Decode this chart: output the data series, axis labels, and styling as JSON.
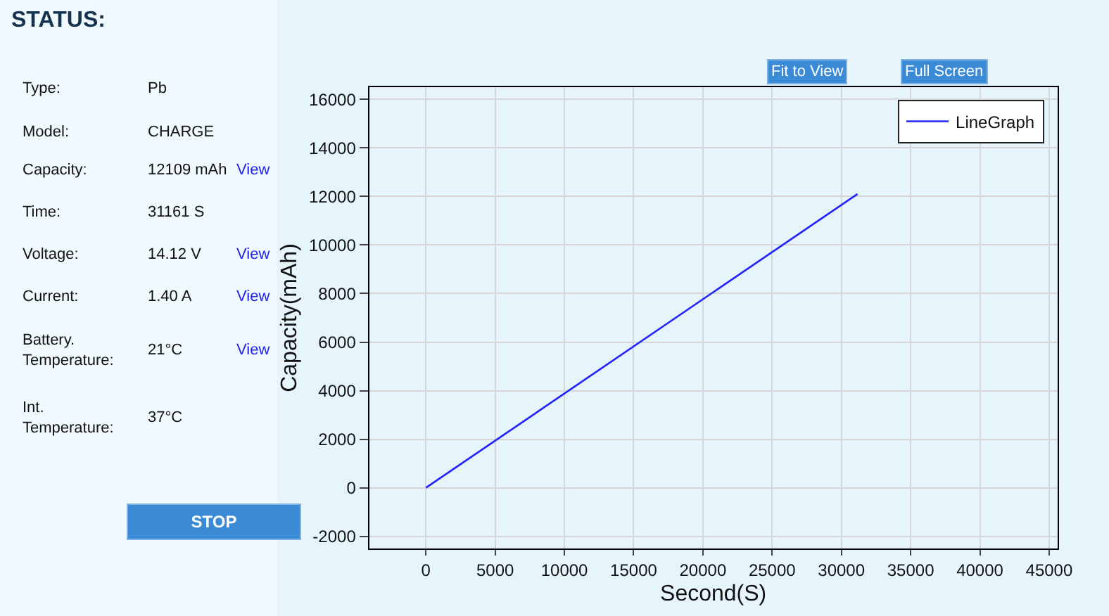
{
  "chart_data": [
    {
      "type": "other",
      "title": "STATUS:",
      "annotations": [
        "Type:",
        "Pb",
        "Model:",
        "CHARGE",
        "Capacity:",
        "12109 mAh",
        "View",
        "Time:",
        "31161 S",
        "Voltage:",
        "14.12 V",
        "View",
        "Current:",
        "1.40 A",
        "View",
        "Battery.\nTemperature:",
        "21°C",
        "View",
        "Int.\nTemperature:",
        "37°C",
        "STOP"
      ]
    },
    {
      "type": "line",
      "xlabel": "Second(S)",
      "ylabel": "Capacity(mAh)",
      "annotations": [
        "Fit to View",
        "Full Screen"
      ],
      "x": [
        0,
        31161
      ],
      "series": [
        {
          "name": "LineGraph",
          "color": "#2323ff",
          "values": [
            0,
            12100
          ]
        }
      ],
      "xlim": [
        -4100,
        45600
      ],
      "xticks": [
        0,
        5000,
        10000,
        15000,
        20000,
        25000,
        30000,
        35000,
        40000,
        45000
      ],
      "ylim": [
        -2500,
        16500
      ],
      "yticks": [
        -2000,
        0,
        2000,
        4000,
        6000,
        8000,
        10000,
        12000,
        14000,
        16000
      ],
      "grid": true,
      "legend": "top right",
      "marker": "none",
      "line_style": "solid"
    }
  ]
}
